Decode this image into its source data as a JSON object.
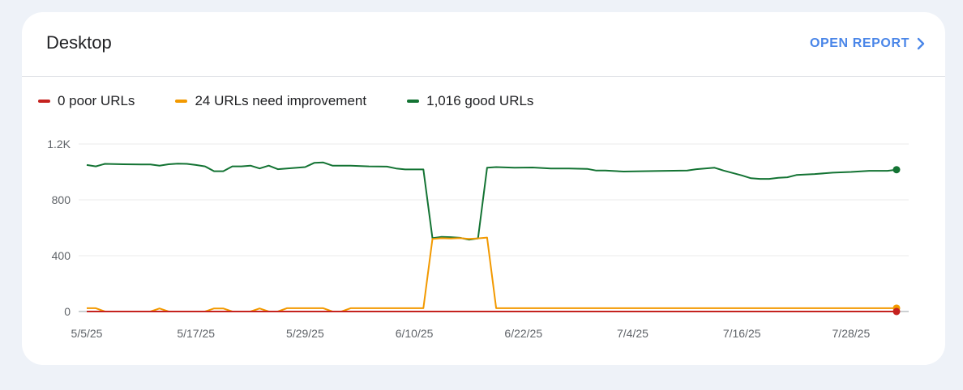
{
  "card": {
    "title": "Desktop",
    "action_label": "OPEN REPORT",
    "action_icon": "chevron-right-icon"
  },
  "legend": [
    {
      "label": "0 poor URLs",
      "color": "#c5221f"
    },
    {
      "label": "24 URLs need improvement",
      "color": "#f29900"
    },
    {
      "label": "1,016 good URLs",
      "color": "#137333"
    }
  ],
  "chart_data": {
    "type": "line",
    "x_start": "2025-05-05",
    "x_end": "2025-08-02",
    "x_ticks": [
      {
        "date": "2025-05-05",
        "label": "5/5/25"
      },
      {
        "date": "2025-05-17",
        "label": "5/17/25"
      },
      {
        "date": "2025-05-29",
        "label": "5/29/25"
      },
      {
        "date": "2025-06-10",
        "label": "6/10/25"
      },
      {
        "date": "2025-06-22",
        "label": "6/22/25"
      },
      {
        "date": "2025-07-04",
        "label": "7/4/25"
      },
      {
        "date": "2025-07-16",
        "label": "7/16/25"
      },
      {
        "date": "2025-07-28",
        "label": "7/28/25"
      }
    ],
    "y_ticks": [
      {
        "value": 0,
        "label": "0"
      },
      {
        "value": 400,
        "label": "400"
      },
      {
        "value": 800,
        "label": "800"
      },
      {
        "value": 1200,
        "label": "1.2K"
      }
    ],
    "ylim": [
      0,
      1200
    ],
    "grid": true,
    "series": [
      {
        "name": "0 poor URLs",
        "color": "#c5221f",
        "points": [
          [
            "2025-05-05",
            0
          ],
          [
            "2025-08-02",
            0
          ]
        ]
      },
      {
        "name": "24 URLs need improvement",
        "color": "#f29900",
        "points": [
          [
            "2025-05-05",
            24
          ],
          [
            "2025-05-06",
            24
          ],
          [
            "2025-05-07",
            0
          ],
          [
            "2025-05-12",
            0
          ],
          [
            "2025-05-13",
            22
          ],
          [
            "2025-05-14",
            0
          ],
          [
            "2025-05-18",
            0
          ],
          [
            "2025-05-19",
            22
          ],
          [
            "2025-05-20",
            22
          ],
          [
            "2025-05-21",
            0
          ],
          [
            "2025-05-23",
            0
          ],
          [
            "2025-05-24",
            22
          ],
          [
            "2025-05-25",
            0
          ],
          [
            "2025-05-26",
            0
          ],
          [
            "2025-05-27",
            24
          ],
          [
            "2025-05-31",
            24
          ],
          [
            "2025-06-01",
            0
          ],
          [
            "2025-06-02",
            0
          ],
          [
            "2025-06-03",
            24
          ],
          [
            "2025-06-11",
            24
          ],
          [
            "2025-06-12",
            520
          ],
          [
            "2025-06-13",
            525
          ],
          [
            "2025-06-14",
            523
          ],
          [
            "2025-06-15",
            526
          ],
          [
            "2025-06-16",
            520
          ],
          [
            "2025-06-17",
            524
          ],
          [
            "2025-06-18",
            530
          ],
          [
            "2025-06-19",
            24
          ],
          [
            "2025-08-02",
            24
          ]
        ]
      },
      {
        "name": "1,016 good URLs",
        "color": "#137333",
        "points": [
          [
            "2025-05-05",
            1050
          ],
          [
            "2025-05-06",
            1040
          ],
          [
            "2025-05-07",
            1058
          ],
          [
            "2025-05-09",
            1055
          ],
          [
            "2025-05-11",
            1054
          ],
          [
            "2025-05-12",
            1054
          ],
          [
            "2025-05-13",
            1045
          ],
          [
            "2025-05-14",
            1055
          ],
          [
            "2025-05-15",
            1060
          ],
          [
            "2025-05-16",
            1058
          ],
          [
            "2025-05-17",
            1050
          ],
          [
            "2025-05-18",
            1040
          ],
          [
            "2025-05-19",
            1005
          ],
          [
            "2025-05-20",
            1005
          ],
          [
            "2025-05-21",
            1040
          ],
          [
            "2025-05-22",
            1040
          ],
          [
            "2025-05-23",
            1045
          ],
          [
            "2025-05-24",
            1025
          ],
          [
            "2025-05-25",
            1045
          ],
          [
            "2025-05-26",
            1020
          ],
          [
            "2025-05-27",
            1025
          ],
          [
            "2025-05-29",
            1035
          ],
          [
            "2025-05-30",
            1065
          ],
          [
            "2025-05-31",
            1068
          ],
          [
            "2025-06-01",
            1045
          ],
          [
            "2025-06-03",
            1045
          ],
          [
            "2025-06-05",
            1040
          ],
          [
            "2025-06-07",
            1038
          ],
          [
            "2025-06-08",
            1025
          ],
          [
            "2025-06-09",
            1018
          ],
          [
            "2025-06-11",
            1018
          ],
          [
            "2025-06-12",
            525
          ],
          [
            "2025-06-13",
            535
          ],
          [
            "2025-06-14",
            533
          ],
          [
            "2025-06-15",
            528
          ],
          [
            "2025-06-16",
            515
          ],
          [
            "2025-06-17",
            524
          ],
          [
            "2025-06-18",
            1030
          ],
          [
            "2025-06-19",
            1035
          ],
          [
            "2025-06-21",
            1030
          ],
          [
            "2025-06-23",
            1032
          ],
          [
            "2025-06-25",
            1025
          ],
          [
            "2025-06-27",
            1025
          ],
          [
            "2025-06-29",
            1022
          ],
          [
            "2025-06-30",
            1010
          ],
          [
            "2025-07-01",
            1010
          ],
          [
            "2025-07-03",
            1003
          ],
          [
            "2025-07-05",
            1005
          ],
          [
            "2025-07-07",
            1007
          ],
          [
            "2025-07-10",
            1010
          ],
          [
            "2025-07-11",
            1020
          ],
          [
            "2025-07-13",
            1030
          ],
          [
            "2025-07-14",
            1010
          ],
          [
            "2025-07-16",
            975
          ],
          [
            "2025-07-17",
            955
          ],
          [
            "2025-07-18",
            950
          ],
          [
            "2025-07-19",
            950
          ],
          [
            "2025-07-20",
            958
          ],
          [
            "2025-07-21",
            962
          ],
          [
            "2025-07-22",
            978
          ],
          [
            "2025-07-24",
            985
          ],
          [
            "2025-07-26",
            995
          ],
          [
            "2025-07-28",
            1000
          ],
          [
            "2025-07-30",
            1008
          ],
          [
            "2025-08-01",
            1008
          ],
          [
            "2025-08-02",
            1016
          ]
        ]
      }
    ]
  }
}
